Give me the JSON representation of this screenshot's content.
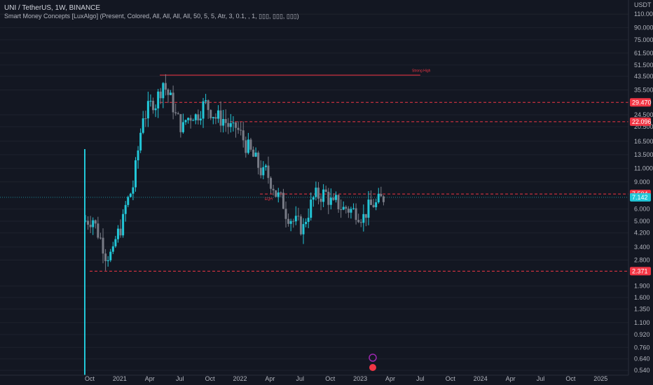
{
  "header": {
    "symbol_line": "UNI / TetherUS, 1W, BINANCE",
    "indicator_line": "Smart Money Concepts [LuxAlgo] (Present, Colored, All, All, All, All, 50, 5, 5, Atr, 3, 0.1, , 1, ▯▯▯, ▯▯▯, ▯▯▯)"
  },
  "price_axis": {
    "currency": "USDT",
    "ticks": [
      "110.000",
      "90.000",
      "75.000",
      "61.500",
      "51.500",
      "43.500",
      "35.500",
      "24.500",
      "20.500",
      "16.500",
      "13.500",
      "11.000",
      "9.000",
      "6.000",
      "5.000",
      "4.200",
      "3.400",
      "2.800",
      "1.900",
      "1.600",
      "1.350",
      "1.100",
      "0.920",
      "0.760",
      "0.640",
      "0.540"
    ]
  },
  "time_axis": {
    "ticks": [
      "Oct",
      "2021",
      "Apr",
      "Jul",
      "Oct",
      "2022",
      "Apr",
      "Jul",
      "Oct",
      "2023",
      "Apr",
      "Jul",
      "Oct",
      "2024",
      "Apr",
      "Jul",
      "Oct",
      "2025"
    ]
  },
  "badges": [
    {
      "name": "level-29470",
      "text": "29.470",
      "color": "#f23645"
    },
    {
      "name": "level-22096",
      "text": "22.096",
      "color": "#f23645"
    },
    {
      "name": "level-7504",
      "text": "7.504",
      "color": "#f23645"
    },
    {
      "name": "current-price",
      "text": "7.142",
      "color": "#22c7d8"
    },
    {
      "name": "level-2371",
      "text": "2.371",
      "color": "#f23645"
    }
  ],
  "annotations": {
    "strong_high": "Strong High",
    "eqh": "EQH"
  },
  "colors": {
    "background": "#131722",
    "bull": "#22c7d8",
    "bear": "#787b86",
    "level": "#f23645"
  },
  "chart_data": {
    "type": "candlestick",
    "scale": "log",
    "ylim": [
      0.54,
      125
    ],
    "x": [
      "2020-09",
      "2020-10",
      "2020-11",
      "2020-12",
      "2021-01",
      "2021-02",
      "2021-03",
      "2021-04",
      "2021-05",
      "2021-06",
      "2021-07",
      "2021-08",
      "2021-09",
      "2021-10",
      "2021-11",
      "2021-12",
      "2022-01",
      "2022-02",
      "2022-03",
      "2022-04",
      "2022-05",
      "2022-06",
      "2022-07",
      "2022-08",
      "2022-09",
      "2022-10",
      "2022-11",
      "2022-12",
      "2023-01",
      "2023-02"
    ],
    "close": [
      5.2,
      3.5,
      3.0,
      5.0,
      8.5,
      25,
      30,
      40,
      28,
      20,
      25,
      28,
      25,
      23,
      19,
      17,
      13,
      10,
      8.5,
      6.5,
      5.0,
      4.5,
      7.0,
      7.5,
      6.2,
      6.0,
      5.8,
      5.3,
      6.5,
      7.14
    ],
    "levels": [
      {
        "label": "Strong High",
        "value": 44.3,
        "style": "solid",
        "from": "2021-05",
        "to": "2023-07"
      },
      {
        "label": "",
        "value": 29.47,
        "style": "dashed",
        "from": "2021-05",
        "to": "2025-09"
      },
      {
        "label": "",
        "value": 22.096,
        "style": "dashed",
        "from": "2021-12",
        "to": "2025-09"
      },
      {
        "label": "EQH",
        "value": 7.504,
        "style": "dashed",
        "from": "2022-03",
        "to": "2025-09"
      },
      {
        "label": "",
        "value": 2.371,
        "style": "dashed",
        "from": "2020-10",
        "to": "2025-09"
      }
    ],
    "current_price": 7.142
  }
}
